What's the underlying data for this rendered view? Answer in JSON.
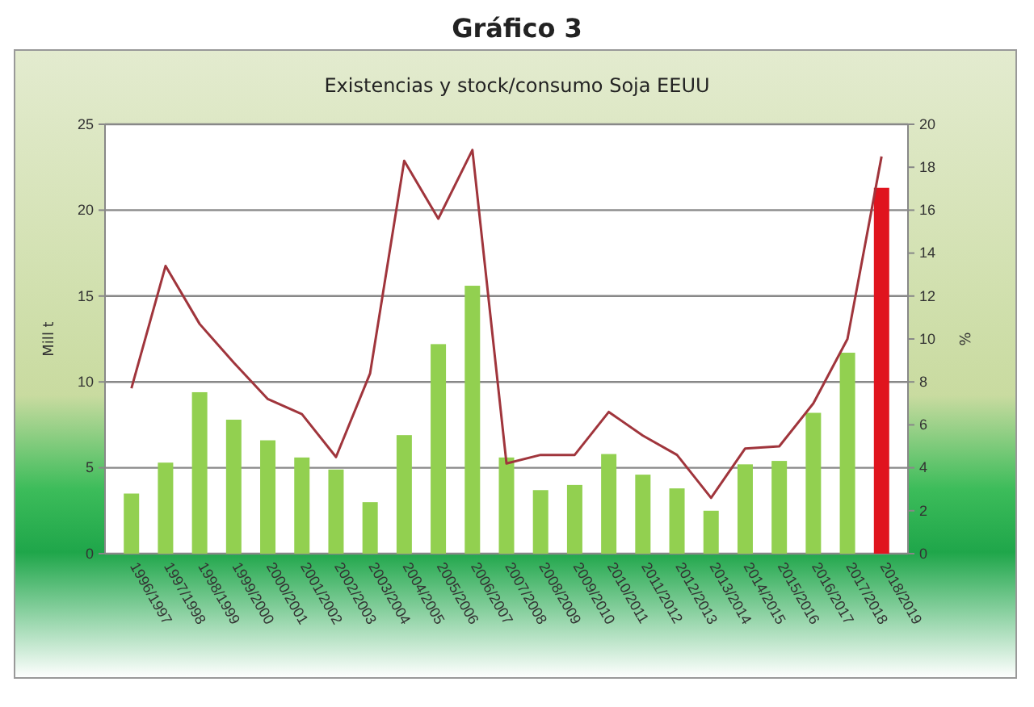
{
  "chart_data": {
    "type": "bar",
    "title": "Gráfico 3",
    "subtitle": "Existencias y stock/consumo Soja EEUU",
    "ylabel": "Mill t",
    "y2label": "%",
    "categories": [
      "1996/1997",
      "1997/1998",
      "1998/1999",
      "1999/2000",
      "2000/2001",
      "2001/2002",
      "2002/2003",
      "2003/2004",
      "2004/2005",
      "2005/2006",
      "2006/2007",
      "2007/2008",
      "2008/2009",
      "2009/2010",
      "2010/2011",
      "2011/2012",
      "2012/2013",
      "2013/2014",
      "2014/2015",
      "2015/2016",
      "2016/2017",
      "2017/2018",
      "2018/2019"
    ],
    "series": [
      {
        "colors": [
          "#92d050",
          "#92d050",
          "#92d050",
          "#92d050",
          "#92d050",
          "#92d050",
          "#92d050",
          "#92d050",
          "#92d050",
          "#92d050",
          "#92d050",
          "#92d050",
          "#92d050",
          "#92d050",
          "#92d050",
          "#92d050",
          "#92d050",
          "#92d050",
          "#92d050",
          "#92d050",
          "#92d050",
          "#92d050",
          "#e0141e"
        ],
        "values": [
          3.5,
          5.3,
          9.4,
          7.8,
          6.6,
          5.6,
          4.9,
          3.0,
          6.9,
          12.2,
          15.6,
          5.6,
          3.7,
          4.0,
          5.8,
          4.6,
          3.8,
          2.5,
          5.2,
          5.4,
          8.2,
          11.7,
          21.3
        ]
      },
      {
        "type": "line",
        "axis": "y2",
        "color": "#a0353c",
        "values": [
          7.7,
          13.4,
          10.7,
          8.9,
          7.2,
          6.5,
          4.5,
          8.4,
          18.3,
          15.6,
          18.8,
          4.2,
          4.6,
          4.6,
          6.6,
          5.5,
          4.6,
          2.6,
          4.9,
          5.0,
          7.0,
          10.0,
          18.5
        ]
      }
    ],
    "ylim": [
      0,
      25
    ],
    "yticks": [
      0,
      5,
      10,
      15,
      20,
      25
    ],
    "y2lim": [
      0,
      20
    ],
    "y2ticks": [
      0,
      2,
      4,
      6,
      8,
      10,
      12,
      14,
      16,
      18,
      20
    ],
    "grid": "y",
    "marker": "none",
    "line_style": "solid"
  }
}
